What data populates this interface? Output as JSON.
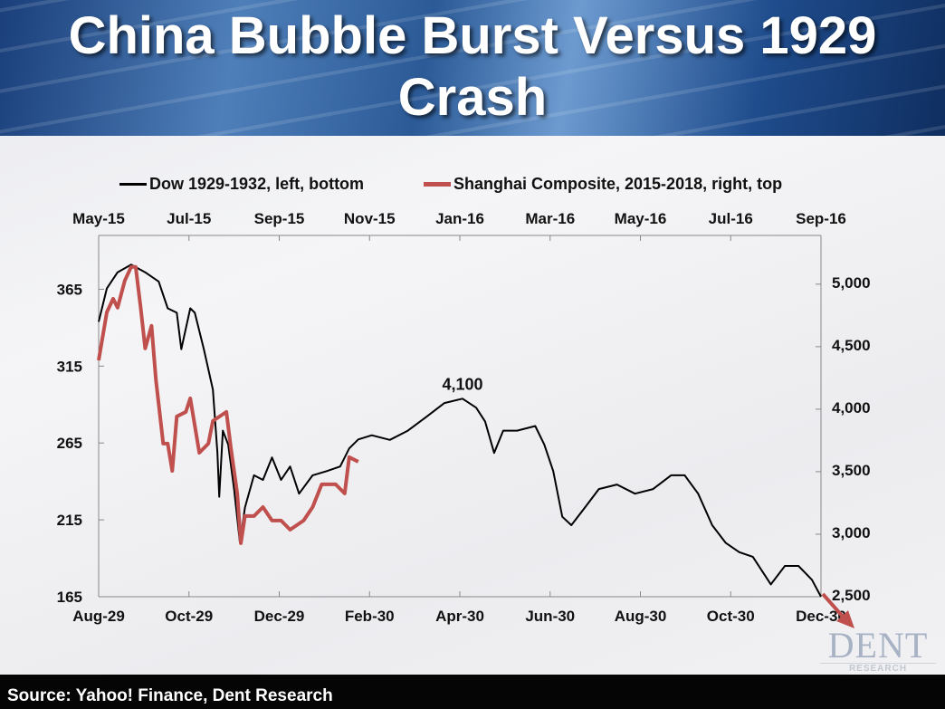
{
  "title": "China Bubble Burst Versus 1929 Crash",
  "source": "Source: Yahoo! Finance, Dent Research",
  "logo": {
    "name": "DENT",
    "sub": "RESEARCH"
  },
  "colors": {
    "dow": "#000000",
    "shanghai": "#c0504d"
  },
  "chart_data": {
    "type": "line",
    "title": "China Bubble Burst Versus 1929 Crash",
    "legend": [
      "Dow 1929-1932, left, bottom",
      "Shanghai Composite, 2015-2018, right, top"
    ],
    "legend_position": "top",
    "x_bottom_ticks": [
      "Aug-29",
      "Oct-29",
      "Dec-29",
      "Feb-30",
      "Apr-30",
      "Jun-30",
      "Aug-30",
      "Oct-30",
      "Dec-30"
    ],
    "x_top_ticks": [
      "May-15",
      "Jul-15",
      "Sep-15",
      "Nov-15",
      "Jan-16",
      "Mar-16",
      "May-16",
      "Jul-16",
      "Sep-16"
    ],
    "x_unit": "months since start",
    "xlim": [
      0,
      16
    ],
    "y_left_ticks": [
      "165",
      "215",
      "265",
      "315",
      "365"
    ],
    "y_left_lim": [
      165,
      400
    ],
    "y_right_ticks": [
      "2,500",
      "3,000",
      "3,500",
      "4,000",
      "4,500",
      "5,000"
    ],
    "y_right_lim": [
      2500,
      5390
    ],
    "annotation": {
      "text": "4,100",
      "x": 8.06,
      "series": "dow"
    },
    "series": [
      {
        "name": "Dow 1929-1932, left, bottom",
        "axis": "left",
        "points": [
          [
            0,
            343.8
          ],
          [
            0.18,
            365.5
          ],
          [
            0.42,
            376
          ],
          [
            0.72,
            381
          ],
          [
            1.03,
            376
          ],
          [
            1.33,
            370
          ],
          [
            1.53,
            352.6
          ],
          [
            1.73,
            349.7
          ],
          [
            1.83,
            326
          ],
          [
            2.03,
            352.6
          ],
          [
            2.13,
            349.7
          ],
          [
            2.33,
            326
          ],
          [
            2.53,
            299.7
          ],
          [
            2.63,
            258.5
          ],
          [
            2.67,
            230
          ],
          [
            2.75,
            273
          ],
          [
            2.87,
            264
          ],
          [
            3.0,
            235
          ],
          [
            3.13,
            200
          ],
          [
            3.24,
            223
          ],
          [
            3.44,
            244
          ],
          [
            3.64,
            241
          ],
          [
            3.84,
            255.6
          ],
          [
            4.04,
            241
          ],
          [
            4.24,
            249.7
          ],
          [
            4.44,
            232
          ],
          [
            4.74,
            244
          ],
          [
            5.05,
            246.7
          ],
          [
            5.35,
            249.7
          ],
          [
            5.55,
            261.5
          ],
          [
            5.75,
            267.3
          ],
          [
            6.05,
            270
          ],
          [
            6.45,
            267
          ],
          [
            6.85,
            273
          ],
          [
            7.26,
            282
          ],
          [
            7.66,
            291
          ],
          [
            8.06,
            293.8
          ],
          [
            8.36,
            288
          ],
          [
            8.56,
            279
          ],
          [
            8.76,
            258.5
          ],
          [
            8.96,
            273
          ],
          [
            9.27,
            273
          ],
          [
            9.67,
            276
          ],
          [
            9.87,
            264
          ],
          [
            10.07,
            246.7
          ],
          [
            10.27,
            217
          ],
          [
            10.47,
            211.5
          ],
          [
            10.77,
            223
          ],
          [
            11.08,
            235
          ],
          [
            11.48,
            238
          ],
          [
            11.88,
            232
          ],
          [
            12.28,
            235
          ],
          [
            12.68,
            244
          ],
          [
            12.98,
            244
          ],
          [
            13.28,
            232
          ],
          [
            13.59,
            211.5
          ],
          [
            13.89,
            200
          ],
          [
            14.19,
            194
          ],
          [
            14.49,
            191
          ],
          [
            14.89,
            173
          ],
          [
            15.2,
            185
          ],
          [
            15.5,
            185
          ],
          [
            15.8,
            176
          ],
          [
            16.0,
            165
          ]
        ]
      },
      {
        "name": "Shanghai Composite, 2015-2018, right, top",
        "axis": "right",
        "points": [
          [
            0,
            4391
          ],
          [
            0.18,
            4775
          ],
          [
            0.32,
            4884
          ],
          [
            0.42,
            4812
          ],
          [
            0.58,
            5029
          ],
          [
            0.72,
            5138
          ],
          [
            0.82,
            5138
          ],
          [
            0.93,
            4812
          ],
          [
            1.03,
            4486
          ],
          [
            1.17,
            4667
          ],
          [
            1.27,
            4232
          ],
          [
            1.43,
            3725
          ],
          [
            1.53,
            3725
          ],
          [
            1.63,
            3507
          ],
          [
            1.73,
            3942
          ],
          [
            1.93,
            3978
          ],
          [
            2.03,
            4087
          ],
          [
            2.13,
            3870
          ],
          [
            2.23,
            3652
          ],
          [
            2.43,
            3725
          ],
          [
            2.53,
            3906
          ],
          [
            2.83,
            3978
          ],
          [
            2.93,
            3688
          ],
          [
            3.07,
            3326
          ],
          [
            3.15,
            2928
          ],
          [
            3.24,
            3145
          ],
          [
            3.44,
            3145
          ],
          [
            3.64,
            3217
          ],
          [
            3.84,
            3109
          ],
          [
            4.04,
            3109
          ],
          [
            4.24,
            3036
          ],
          [
            4.54,
            3109
          ],
          [
            4.74,
            3217
          ],
          [
            4.94,
            3399
          ],
          [
            5.25,
            3399
          ],
          [
            5.45,
            3326
          ],
          [
            5.55,
            3616
          ],
          [
            5.75,
            3580
          ]
        ]
      }
    ]
  }
}
